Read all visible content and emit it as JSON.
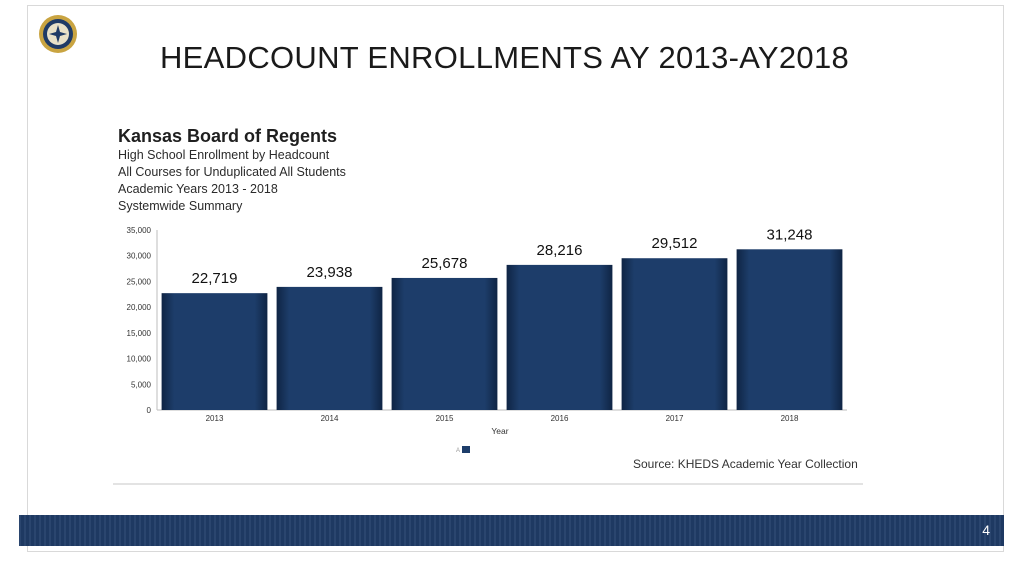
{
  "slide": {
    "title": "HEADCOUNT ENROLLMENTS AY 2013-AY2018",
    "page_number": "4"
  },
  "chart_header": {
    "org": "Kansas Board of Regents",
    "lines": [
      "High School Enrollment by Headcount",
      "All Courses for Unduplicated All Students",
      "Academic Years 2013 - 2018",
      "Systemwide Summary"
    ]
  },
  "source_note": "Source: KHEDS Academic Year Collection",
  "colors": {
    "bar": "#1d3d6a",
    "bar_edge": "#0f2444",
    "footer": "#1f3b66"
  },
  "chart_data": {
    "type": "bar",
    "categories": [
      "2013",
      "2014",
      "2015",
      "2016",
      "2017",
      "2018"
    ],
    "values": [
      22719,
      23938,
      25678,
      28216,
      29512,
      31248
    ],
    "value_labels": [
      "22,719",
      "23,938",
      "25,678",
      "28,216",
      "29,512",
      "31,248"
    ],
    "xlabel": "Year",
    "ylabel": "",
    "ylim": [
      0,
      35000
    ],
    "yticks": [
      0,
      5000,
      10000,
      15000,
      20000,
      25000,
      30000,
      35000
    ],
    "ytick_labels": [
      "0",
      "5,000",
      "10,000",
      "15,000",
      "20,000",
      "25,000",
      "30,000",
      "35,000"
    ],
    "legend_entry": "A",
    "legend_placement": "bottom-center"
  }
}
